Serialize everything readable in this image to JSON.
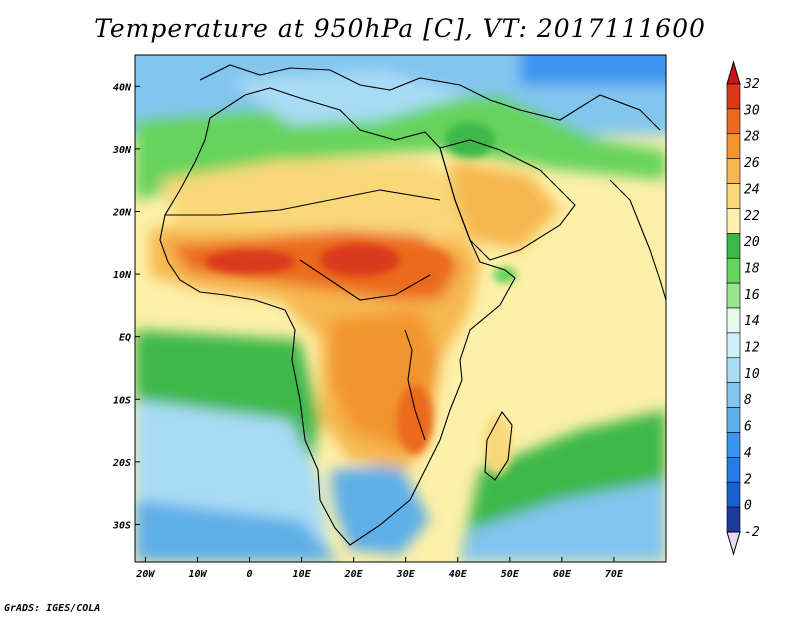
{
  "title": "Temperature at 950hPa [C], VT: 2017111600",
  "credit": "GrADS: IGES/COLA",
  "map": {
    "lon_range": [
      -22,
      80
    ],
    "lat_range": [
      -36,
      45
    ],
    "x_ticks": [
      {
        "lon": -20,
        "label": "20W"
      },
      {
        "lon": -10,
        "label": "10W"
      },
      {
        "lon": 0,
        "label": "0"
      },
      {
        "lon": 10,
        "label": "10E"
      },
      {
        "lon": 20,
        "label": "20E"
      },
      {
        "lon": 30,
        "label": "30E"
      },
      {
        "lon": 40,
        "label": "40E"
      },
      {
        "lon": 50,
        "label": "50E"
      },
      {
        "lon": 60,
        "label": "60E"
      },
      {
        "lon": 70,
        "label": "70E"
      }
    ],
    "y_ticks": [
      {
        "lat": 40,
        "label": "40N"
      },
      {
        "lat": 30,
        "label": "30N"
      },
      {
        "lat": 20,
        "label": "20N"
      },
      {
        "lat": 10,
        "label": "10N"
      },
      {
        "lat": 0,
        "label": "EQ"
      },
      {
        "lat": -10,
        "label": "10S"
      },
      {
        "lat": -20,
        "label": "20S"
      },
      {
        "lat": -30,
        "label": "30S"
      }
    ]
  },
  "colorbar": {
    "levels": [
      "-2",
      "0",
      "2",
      "4",
      "6",
      "8",
      "10",
      "12",
      "14",
      "16",
      "18",
      "20",
      "22",
      "24",
      "26",
      "28",
      "30",
      "32"
    ],
    "colors": [
      "#1e3c99",
      "#1a5fd0",
      "#2a79e8",
      "#3d94f0",
      "#5fafe8",
      "#82c5ef",
      "#a8dcf5",
      "#cff0fb",
      "#e6fbe9",
      "#9be38f",
      "#66d35c",
      "#3cb84a",
      "#fdf0a8",
      "#f9d87a",
      "#f6b74f",
      "#f2952d",
      "#eb6a1f",
      "#d9381a"
    ],
    "under_color": "#e8d8f8",
    "over_color": "#c8171c"
  }
}
